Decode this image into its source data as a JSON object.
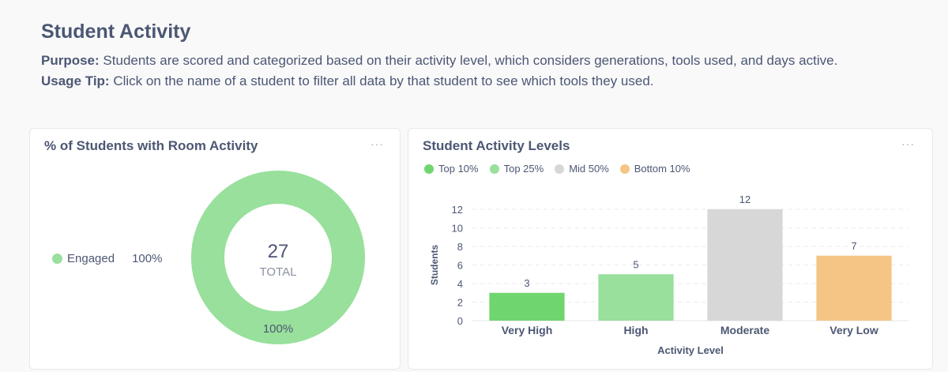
{
  "header": {
    "title": "Student Activity",
    "purpose_label": "Purpose:",
    "purpose_text": "Students are scored and categorized based on their activity level, which considers generations, tools used, and days active.",
    "tip_label": "Usage Tip:",
    "tip_text": "Click on the name of a student to filter all data by that student to see which tools they used."
  },
  "left_card": {
    "title": "% of Students with Room Activity",
    "more": "···",
    "legend": {
      "label": "Engaged",
      "value": "100%",
      "color": "#98e09c"
    },
    "center_value": "27",
    "center_label": "TOTAL",
    "slice_label": "100%"
  },
  "right_card": {
    "title": "Student Activity Levels",
    "more": "···"
  },
  "chart_data": [
    {
      "type": "pie",
      "title": "% of Students with Room Activity",
      "categories": [
        "Engaged"
      ],
      "values": [
        27
      ],
      "percent_labels": [
        "100%"
      ],
      "total": 27,
      "total_label": "TOTAL",
      "colors": [
        "#98e09c"
      ],
      "legend_position": "left"
    },
    {
      "type": "bar",
      "title": "Student Activity Levels",
      "categories": [
        "Very High",
        "High",
        "Moderate",
        "Very Low"
      ],
      "values": [
        3,
        5,
        12,
        7
      ],
      "colors": [
        "#6fd66f",
        "#98e09c",
        "#d7d7d7",
        "#f4c584"
      ],
      "xlabel": "Activity Level",
      "ylabel": "Students",
      "ylim": [
        0,
        12
      ],
      "yticks": [
        0,
        2,
        4,
        6,
        8,
        10,
        12
      ],
      "grid": true,
      "legend_position": "top-left",
      "legend": [
        {
          "label": "Top 10%",
          "color": "#6fd66f"
        },
        {
          "label": "Top 25%",
          "color": "#98e09c"
        },
        {
          "label": "Mid 50%",
          "color": "#d7d7d7"
        },
        {
          "label": "Bottom 10%",
          "color": "#f4c584"
        }
      ]
    }
  ]
}
